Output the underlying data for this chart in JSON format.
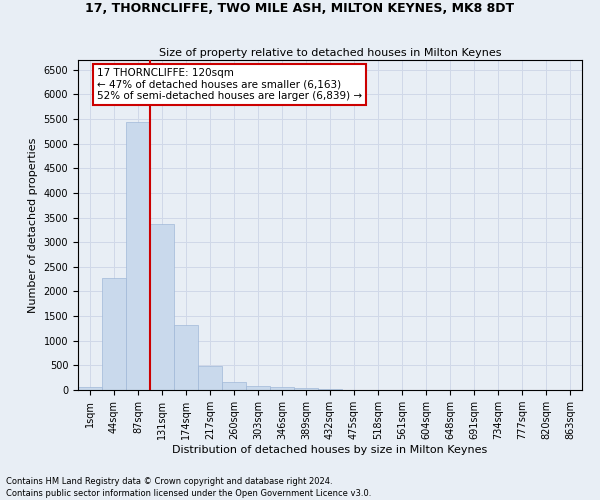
{
  "title": "17, THORNCLIFFE, TWO MILE ASH, MILTON KEYNES, MK8 8DT",
  "subtitle": "Size of property relative to detached houses in Milton Keynes",
  "xlabel": "Distribution of detached houses by size in Milton Keynes",
  "ylabel": "Number of detached properties",
  "footer_line1": "Contains HM Land Registry data © Crown copyright and database right 2024.",
  "footer_line2": "Contains public sector information licensed under the Open Government Licence v3.0.",
  "bin_labels": [
    "1sqm",
    "44sqm",
    "87sqm",
    "131sqm",
    "174sqm",
    "217sqm",
    "260sqm",
    "303sqm",
    "346sqm",
    "389sqm",
    "432sqm",
    "475sqm",
    "518sqm",
    "561sqm",
    "604sqm",
    "648sqm",
    "691sqm",
    "734sqm",
    "777sqm",
    "820sqm",
    "863sqm"
  ],
  "bar_values": [
    70,
    2270,
    5440,
    3380,
    1310,
    480,
    165,
    80,
    65,
    35,
    25,
    10,
    5,
    5,
    5,
    2,
    2,
    2,
    2,
    2,
    2
  ],
  "bar_color": "#c9d9ec",
  "bar_edge_color": "#a0b8d8",
  "grid_color": "#d0d8e8",
  "annotation_text": "17 THORNCLIFFE: 120sqm\n← 47% of detached houses are smaller (6,163)\n52% of semi-detached houses are larger (6,839) →",
  "vline_x_index": 2,
  "vline_color": "#cc0000",
  "annotation_box_color": "#ffffff",
  "annotation_box_edge_color": "#cc0000",
  "ylim": [
    0,
    6700
  ],
  "yticks": [
    0,
    500,
    1000,
    1500,
    2000,
    2500,
    3000,
    3500,
    4000,
    4500,
    5000,
    5500,
    6000,
    6500
  ],
  "background_color": "#e8eef5",
  "axes_background": "#e8eef5",
  "title_fontsize": 9,
  "subtitle_fontsize": 8,
  "axis_label_fontsize": 8,
  "tick_fontsize": 7,
  "annotation_fontsize": 7.5,
  "footer_fontsize": 6
}
